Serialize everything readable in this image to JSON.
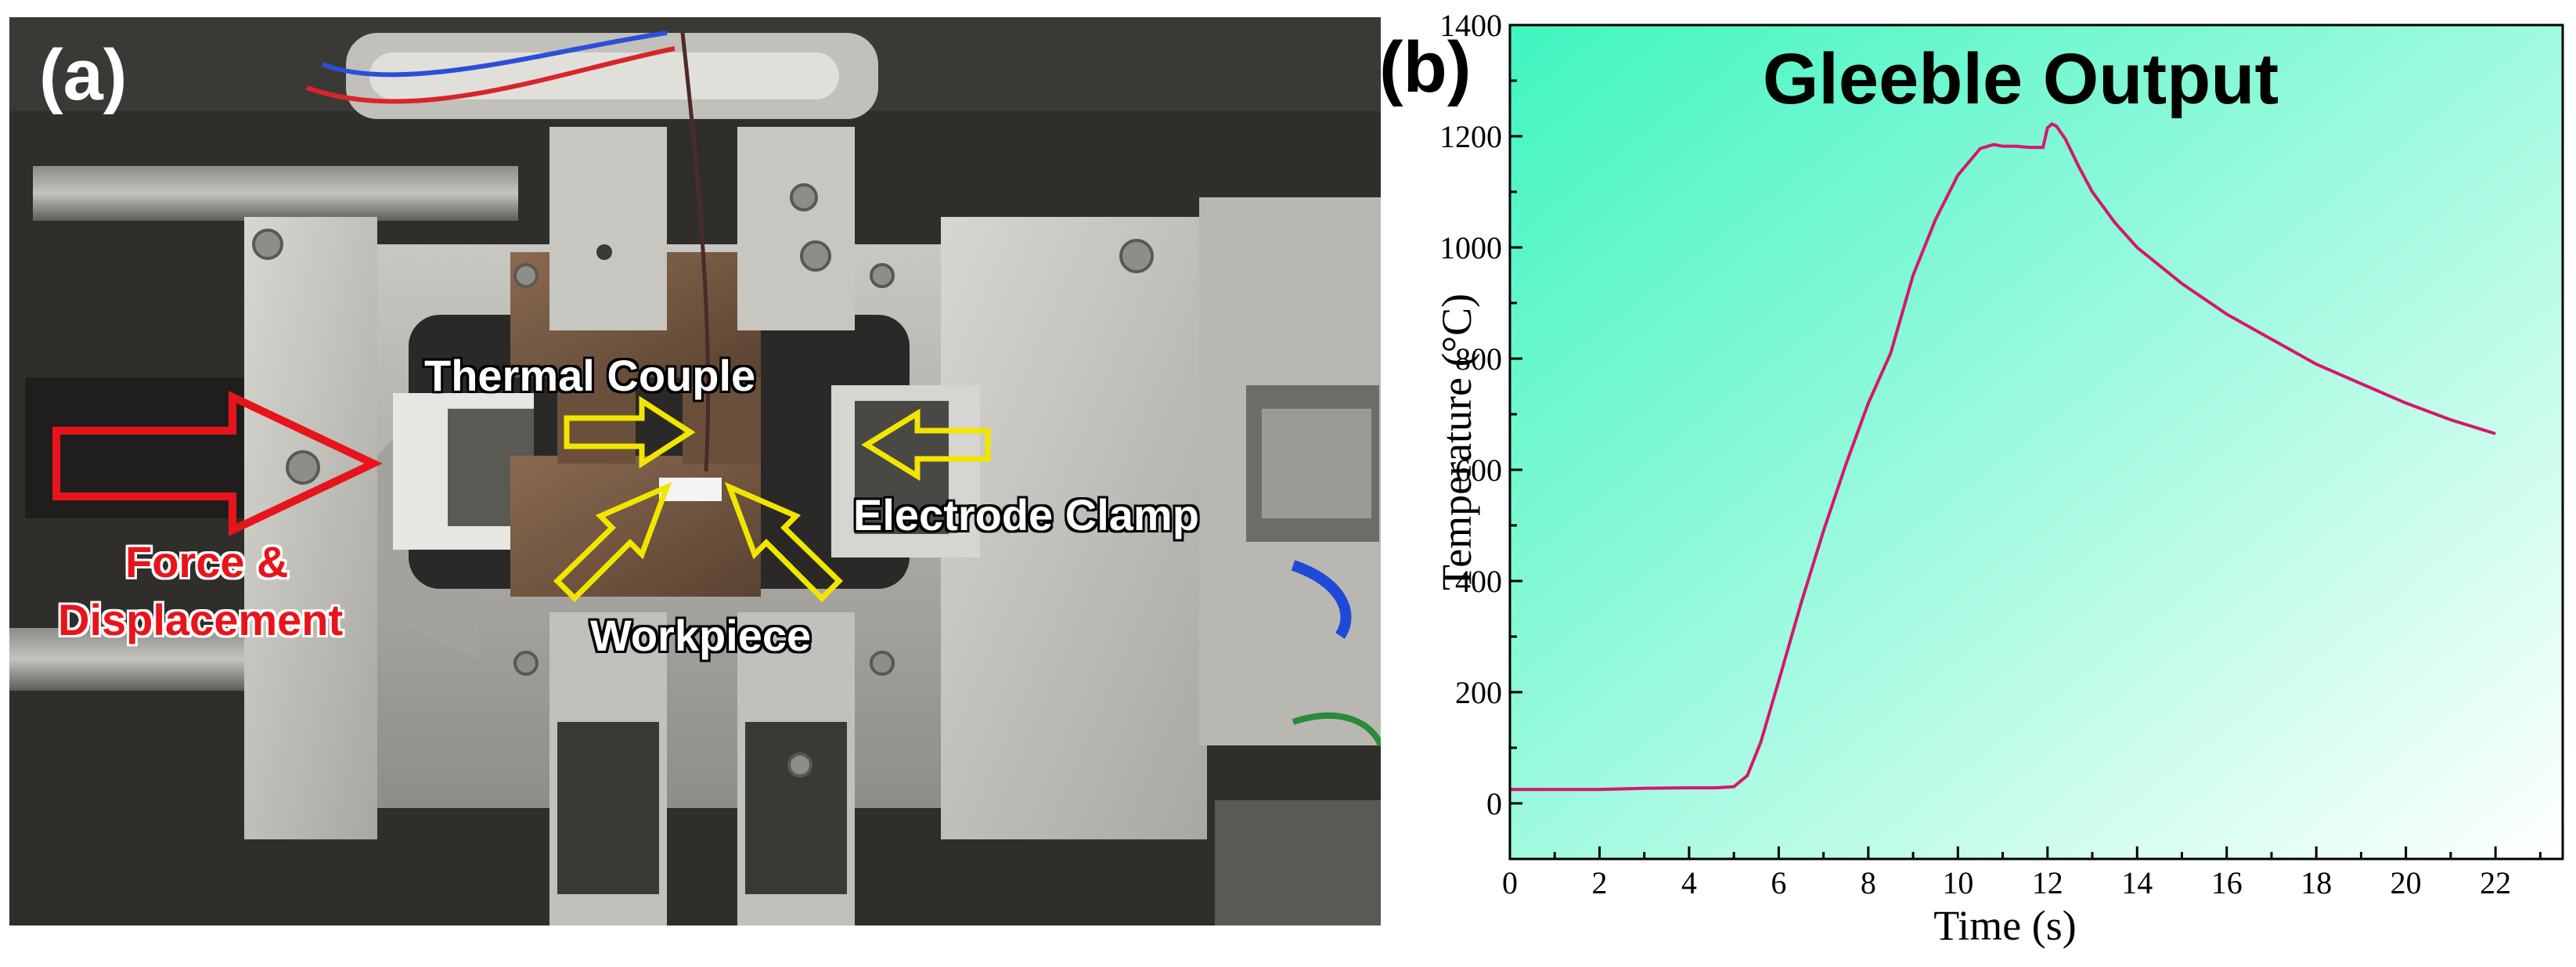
{
  "panel_a": {
    "letter": "(a)",
    "callouts": {
      "thermal_couple": "Thermal Couple",
      "electrode_clamp": "Electrode Clamp",
      "workpiece": "Workpiece",
      "force_line1": "Force &",
      "force_line2": "Displacement"
    },
    "colors": {
      "force_arrow": "#e8141b",
      "pointer_arrows": "#f2e600"
    }
  },
  "panel_b": {
    "letter": "(b)"
  },
  "chart_data": {
    "type": "line",
    "title": "Gleeble Output",
    "xlabel": "Time (s)",
    "ylabel": "Temperature (°C)",
    "xlim": [
      0,
      23.5
    ],
    "ylim": [
      -100,
      1400
    ],
    "xticks": [
      0,
      2,
      4,
      6,
      8,
      10,
      12,
      14,
      16,
      18,
      20,
      22
    ],
    "yticks": [
      0,
      200,
      400,
      600,
      800,
      1000,
      1200,
      1400
    ],
    "grid": false,
    "line_color": "#d6166e",
    "background_gradient": [
      "#40f5bf",
      "#ffffff"
    ],
    "series": [
      {
        "x": [
          0,
          1,
          2,
          3,
          4,
          4.6,
          5.0,
          5.3,
          5.6,
          6.0,
          6.5,
          7.0,
          7.5,
          8.0,
          8.5,
          9.0,
          9.5,
          10.0,
          10.5,
          10.8,
          11.0,
          11.3,
          11.6,
          11.9,
          12.0,
          12.1,
          12.2,
          12.4,
          12.7,
          13.0,
          13.5,
          14.0,
          15.0,
          16.0,
          17.0,
          18.0,
          19.0,
          20.0,
          21.0,
          22.0
        ],
        "y": [
          25,
          25,
          25,
          27,
          28,
          28,
          30,
          50,
          110,
          220,
          360,
          490,
          610,
          720,
          810,
          950,
          1050,
          1130,
          1178,
          1185,
          1182,
          1182,
          1180,
          1180,
          1215,
          1222,
          1218,
          1195,
          1145,
          1100,
          1045,
          1000,
          935,
          880,
          835,
          790,
          755,
          720,
          690,
          665
        ]
      }
    ]
  }
}
